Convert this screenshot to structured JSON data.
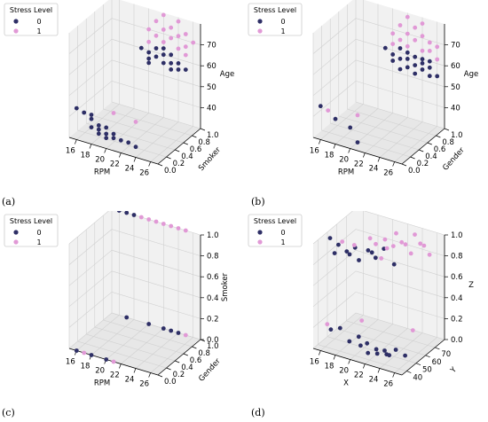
{
  "colors": {
    "class0": "#2e2f66",
    "class1": "#e199d6",
    "pane": "#f1f1f1",
    "pane_dark": "#e7e7e7",
    "grid": "#d0d0d0"
  },
  "chart_data": [
    {
      "type": "scatter",
      "projection": "3d",
      "panel_label": "(a)",
      "xlabel": "RPM",
      "ylabel": "Smoker",
      "zlabel": "Age",
      "xlim": [
        15,
        27
      ],
      "ylim": [
        0,
        1
      ],
      "zlim": [
        30,
        80
      ],
      "xticks": [
        "16",
        "18",
        "20",
        "22",
        "24",
        "26"
      ],
      "yticks": [
        "0.0",
        "0.2",
        "0.4",
        "0.6",
        "0.8",
        "1.0"
      ],
      "zticks": [
        "40",
        "50",
        "60",
        "70"
      ],
      "legend": {
        "title": "Stress Level",
        "entries": [
          "0",
          "1"
        ],
        "position": "top-left"
      },
      "grid": true,
      "series": [
        {
          "name": "0",
          "points": [
            [
              16,
              0,
              45
            ],
            [
              17,
              0,
              44
            ],
            [
              18,
              0,
              44
            ],
            [
              18,
              0,
              42
            ],
            [
              18,
              0,
              38
            ],
            [
              19,
              0,
              40
            ],
            [
              19,
              0,
              38
            ],
            [
              19,
              0,
              36
            ],
            [
              20,
              0,
              40
            ],
            [
              20,
              0,
              37
            ],
            [
              20,
              0,
              35
            ],
            [
              21,
              0,
              38
            ],
            [
              21,
              0,
              36
            ],
            [
              22,
              0,
              36
            ],
            [
              23,
              0,
              36
            ],
            [
              24,
              0,
              35
            ],
            [
              19,
              1,
              60
            ],
            [
              20,
              1,
              59
            ],
            [
              20,
              1,
              56
            ],
            [
              21,
              1,
              62
            ],
            [
              21,
              1,
              58
            ],
            [
              22,
              1,
              63
            ],
            [
              22,
              1,
              60
            ],
            [
              22,
              1,
              56
            ],
            [
              23,
              1,
              61
            ],
            [
              23,
              1,
              57
            ],
            [
              24,
              1,
              58
            ],
            [
              24,
              1,
              55
            ],
            [
              25,
              1,
              56
            ],
            [
              20,
              1,
              54
            ],
            [
              23,
              1,
              54
            ]
          ]
        },
        {
          "name": "1",
          "points": [
            [
              21,
              0,
              48
            ],
            [
              24,
              0,
              47
            ],
            [
              20,
              1,
              70
            ],
            [
              21,
              1,
              75
            ],
            [
              21,
              1,
              68
            ],
            [
              22,
              1,
              72
            ],
            [
              22,
              1,
              66
            ],
            [
              23,
              1,
              74
            ],
            [
              23,
              1,
              69
            ],
            [
              24,
              1,
              71
            ],
            [
              24,
              1,
              65
            ],
            [
              25,
              1,
              73
            ],
            [
              25,
              1,
              67
            ],
            [
              26,
              1,
              70
            ],
            [
              22,
              1,
              79
            ],
            [
              24,
              1,
              78
            ],
            [
              20,
              1,
              64
            ],
            [
              25,
              1,
              63
            ]
          ]
        }
      ]
    },
    {
      "type": "scatter",
      "projection": "3d",
      "panel_label": "(b)",
      "xlabel": "RPM",
      "ylabel": "Gender",
      "zlabel": "Age",
      "xlim": [
        15,
        27
      ],
      "ylim": [
        0,
        1
      ],
      "zlim": [
        30,
        80
      ],
      "xticks": [
        "16",
        "18",
        "20",
        "22",
        "24",
        "26"
      ],
      "yticks": [
        "0.0",
        "0.2",
        "0.4",
        "0.6",
        "0.8",
        "1.0"
      ],
      "zticks": [
        "40",
        "50",
        "60",
        "70"
      ],
      "legend": {
        "title": "Stress Level",
        "entries": [
          "0",
          "1"
        ],
        "position": "top-left"
      },
      "grid": true,
      "series": [
        {
          "name": "0",
          "points": [
            [
              16,
              0,
              46
            ],
            [
              18,
              0,
              42
            ],
            [
              20,
              0,
              40
            ],
            [
              21,
              0,
              34
            ],
            [
              19,
              1,
              60
            ],
            [
              20,
              1,
              58
            ],
            [
              20,
              1,
              55
            ],
            [
              21,
              1,
              62
            ],
            [
              21,
              1,
              57
            ],
            [
              22,
              1,
              61
            ],
            [
              22,
              1,
              58
            ],
            [
              22,
              1,
              54
            ],
            [
              23,
              1,
              60
            ],
            [
              23,
              1,
              56
            ],
            [
              24,
              1,
              58
            ],
            [
              24,
              1,
              55
            ],
            [
              25,
              1,
              57
            ],
            [
              25,
              1,
              53
            ],
            [
              26,
              1,
              54
            ],
            [
              21,
              1,
              52
            ],
            [
              23,
              1,
              52
            ],
            [
              24,
              1,
              60
            ],
            [
              25,
              1,
              60
            ]
          ]
        },
        {
          "name": "1",
          "points": [
            [
              17,
              0,
              45
            ],
            [
              21,
              0,
              47
            ],
            [
              20,
              1,
              68
            ],
            [
              21,
              1,
              73
            ],
            [
              21,
              1,
              66
            ],
            [
              22,
              1,
              70
            ],
            [
              22,
              1,
              64
            ],
            [
              23,
              1,
              74
            ],
            [
              23,
              1,
              68
            ],
            [
              24,
              1,
              71
            ],
            [
              24,
              1,
              64
            ],
            [
              25,
              1,
              69
            ],
            [
              25,
              1,
              65
            ],
            [
              26,
              1,
              68
            ],
            [
              22,
              1,
              78
            ],
            [
              24,
              1,
              77
            ],
            [
              20,
              1,
              63
            ],
            [
              26,
              1,
              62
            ]
          ]
        }
      ]
    },
    {
      "type": "scatter",
      "projection": "3d",
      "panel_label": "(c)",
      "xlabel": "RPM",
      "ylabel": "Gender",
      "zlabel": "Smoker",
      "xlim": [
        15,
        27
      ],
      "ylim": [
        0,
        1
      ],
      "zlim": [
        0,
        1
      ],
      "xticks": [
        "16",
        "18",
        "20",
        "22",
        "24",
        "26"
      ],
      "yticks": [
        "0.0",
        "0.2",
        "0.4",
        "0.6",
        "0.8",
        "1.0"
      ],
      "zticks": [
        "0.0",
        "0.2",
        "0.4",
        "0.6",
        "0.8",
        "1.0"
      ],
      "legend": {
        "title": "Stress Level",
        "entries": [
          "0",
          "1"
        ],
        "position": "top-left"
      },
      "grid": true,
      "series": [
        {
          "name": "0",
          "points": [
            [
              16,
              0,
              0
            ],
            [
              18,
              0,
              0
            ],
            [
              20,
              0,
              0
            ],
            [
              17,
              1,
              0
            ],
            [
              20,
              1,
              0
            ],
            [
              22,
              1,
              0
            ],
            [
              23,
              1,
              0
            ],
            [
              24,
              1,
              0
            ],
            [
              16,
              1,
              1
            ],
            [
              17,
              1,
              1
            ],
            [
              18,
              1,
              1
            ]
          ]
        },
        {
          "name": "1",
          "points": [
            [
              17,
              0,
              0
            ],
            [
              21,
              0,
              0
            ],
            [
              25,
              1,
              0
            ],
            [
              15,
              1,
              1
            ],
            [
              19,
              1,
              1
            ],
            [
              20,
              1,
              1
            ],
            [
              21,
              1,
              1
            ],
            [
              22,
              1,
              1
            ],
            [
              23,
              1,
              1
            ],
            [
              24,
              1,
              1
            ],
            [
              25,
              1,
              1
            ]
          ]
        }
      ]
    },
    {
      "type": "scatter",
      "projection": "3d",
      "panel_label": "(d)",
      "xlabel": "X",
      "ylabel": "Y",
      "zlabel": "Z",
      "xlim": [
        15,
        27
      ],
      "ylim": [
        35,
        80
      ],
      "zlim": [
        0,
        1
      ],
      "xticks": [
        "16",
        "18",
        "20",
        "22",
        "24",
        "26"
      ],
      "yticks": [
        "40",
        "50",
        "60",
        "70"
      ],
      "zticks": [
        "0.0",
        "0.2",
        "0.4",
        "0.6",
        "0.8",
        "1.0"
      ],
      "legend": {
        "title": "Stress Level",
        "entries": [
          "0",
          "1"
        ],
        "position": "top-left"
      },
      "grid": true,
      "series": [
        {
          "name": "0",
          "points": [
            [
              17,
              38,
              0.2
            ],
            [
              18,
              40,
              0.22
            ],
            [
              19,
              42,
              0.1
            ],
            [
              20,
              44,
              0.15
            ],
            [
              21,
              45,
              0.1
            ],
            [
              20,
              46,
              0.05
            ],
            [
              21,
              46,
              0.0
            ],
            [
              22,
              47,
              0.05
            ],
            [
              22,
              48,
              0.0
            ],
            [
              23,
              48,
              0.05
            ],
            [
              23,
              50,
              0.0
            ],
            [
              24,
              52,
              0.05
            ],
            [
              25,
              54,
              0.0
            ],
            [
              24,
              45,
              0.05
            ],
            [
              16,
              45,
              1.0
            ],
            [
              17,
              46,
              0.95
            ],
            [
              18,
              47,
              0.9
            ],
            [
              19,
              48,
              0.95
            ],
            [
              18,
              50,
              0.85
            ],
            [
              19,
              52,
              0.8
            ],
            [
              20,
              54,
              0.9
            ],
            [
              21,
              54,
              0.85
            ],
            [
              22,
              55,
              0.95
            ],
            [
              23,
              58,
              0.8
            ],
            [
              17,
              42,
              0.9
            ],
            [
              20,
              58,
              0.85
            ]
          ]
        },
        {
          "name": "1",
          "points": [
            [
              16,
              42,
              0.2
            ],
            [
              19,
              55,
              0.2
            ],
            [
              24,
              70,
              0.1
            ],
            [
              20,
              62,
              0.9
            ],
            [
              21,
              64,
              0.95
            ],
            [
              21,
              66,
              0.85
            ],
            [
              22,
              65,
              0.9
            ],
            [
              22,
              68,
              1.0
            ],
            [
              23,
              66,
              0.95
            ],
            [
              23,
              70,
              0.9
            ],
            [
              24,
              68,
              0.85
            ],
            [
              24,
              72,
              1.0
            ],
            [
              25,
              70,
              0.95
            ],
            [
              25,
              74,
              0.9
            ],
            [
              26,
              72,
              0.85
            ],
            [
              17,
              50,
              0.95
            ],
            [
              18,
              55,
              0.9
            ],
            [
              20,
              56,
              1.0
            ],
            [
              21,
              60,
              0.8
            ]
          ]
        }
      ]
    }
  ]
}
